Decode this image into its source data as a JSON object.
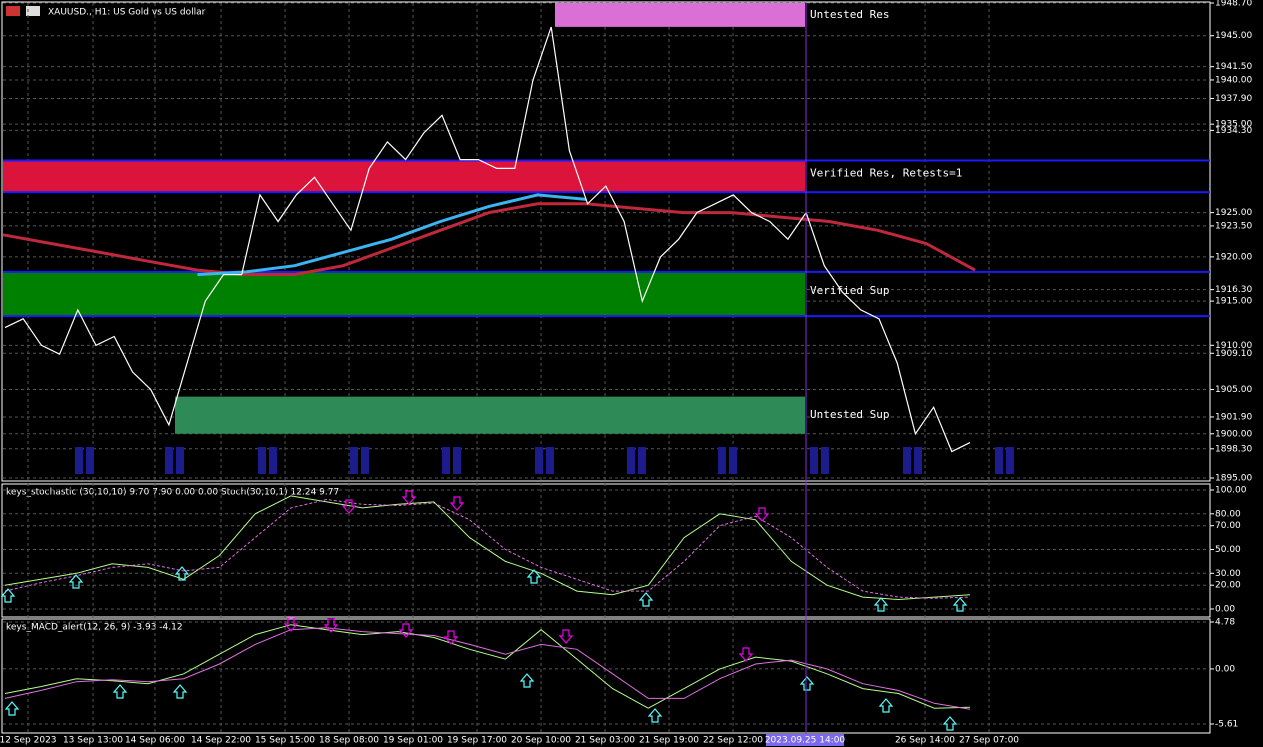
{
  "header": {
    "title": "XAUUSD., H1:  US Gold vs US dollar"
  },
  "price_axis": {
    "ticks": [
      {
        "value": 1948.7,
        "label": "1948.70"
      },
      {
        "value": 1945,
        "label": "1945.00"
      },
      {
        "value": 1941.5,
        "label": "1941.50"
      },
      {
        "value": 1940,
        "label": "1940.00"
      },
      {
        "value": 1937.9,
        "label": "1937.90"
      },
      {
        "value": 1935,
        "label": "1935.00"
      },
      {
        "value": 1934.3,
        "label": "1934.30"
      },
      {
        "value": 1925,
        "label": "1925.00"
      },
      {
        "value": 1923.5,
        "label": "1923.50"
      },
      {
        "value": 1920,
        "label": "1920.00"
      },
      {
        "value": 1916.3,
        "label": "1916.30"
      },
      {
        "value": 1915,
        "label": "1915.00"
      },
      {
        "value": 1910,
        "label": "1910.00"
      },
      {
        "value": 1909.1,
        "label": "1909.10"
      },
      {
        "value": 1905,
        "label": "1905.00"
      },
      {
        "value": 1901.9,
        "label": "1901.90"
      },
      {
        "value": 1900,
        "label": "1900.00"
      },
      {
        "value": 1898.3,
        "label": "1898.30"
      },
      {
        "value": 1895,
        "label": "1895.00"
      }
    ],
    "lim": [
      1895,
      1948.7
    ]
  },
  "zones": [
    {
      "label": "Untested Res",
      "top": 1948.7,
      "bottom": 1946,
      "color": "#da70d6",
      "start": 555
    },
    {
      "label": "Verified Res, Retests=1",
      "top": 1930.9,
      "bottom": 1927.3,
      "color": "#dc143c",
      "start": 3
    },
    {
      "label": "Verified Sup",
      "top": 1918.3,
      "bottom": 1913.3,
      "color": "#008000",
      "start": 3
    },
    {
      "label": "Untested Sup",
      "top": 1904.2,
      "bottom": 1900,
      "color": "#2e8b57",
      "start": 175
    }
  ],
  "price": {
    "closes": [
      1912,
      1913,
      1910,
      1909,
      1914,
      1910,
      1911,
      1907,
      1905,
      1901,
      1908,
      1915,
      1918,
      1918,
      1927,
      1924,
      1927,
      1929,
      1926,
      1923,
      1930,
      1933,
      1931,
      1934,
      1936,
      1931,
      1931,
      1930,
      1930,
      1940,
      1946,
      1932,
      1926,
      1928,
      1924,
      1915,
      1920,
      1922,
      1925,
      1926,
      1927,
      1925,
      1924,
      1922,
      1925,
      1919,
      1916,
      1914,
      1913,
      1908,
      1900,
      1903,
      1898,
      1899
    ],
    "ma_red": [
      1922.5,
      1921.5,
      1920.5,
      1919.5,
      1918.5,
      1918,
      1918,
      1919,
      1921,
      1923,
      1925,
      1926,
      1926,
      1925.5,
      1925,
      1925,
      1924.5,
      1924,
      1923,
      1921.5,
      1918.5
    ],
    "ma_blue": [
      null,
      null,
      null,
      null,
      1918,
      1918.3,
      1919,
      1920.5,
      1922,
      1924,
      1925.7,
      1927,
      1926.5,
      null,
      null,
      null,
      null,
      null,
      null,
      null,
      null
    ]
  },
  "stochastic": {
    "label": "keys_stochastic (30,10,10) 9.70 7.90 0.00 0.00 Stoch(30,10,1) 12.24 9.77",
    "ticks": [
      {
        "value": 100,
        "label": "100.00"
      },
      {
        "value": 80,
        "label": "80.00"
      },
      {
        "value": 70,
        "label": "70.00"
      },
      {
        "value": 50,
        "label": "50.00"
      },
      {
        "value": 30,
        "label": "30.00"
      },
      {
        "value": 20,
        "label": "20.00"
      },
      {
        "value": 0,
        "label": "0.00"
      }
    ],
    "lim": [
      0,
      100
    ],
    "main": [
      20,
      25,
      30,
      38,
      35,
      25,
      45,
      80,
      95,
      90,
      85,
      88,
      90,
      60,
      40,
      30,
      15,
      12,
      20,
      60,
      80,
      75,
      40,
      20,
      10,
      8,
      10,
      12
    ],
    "signal": [
      15,
      22,
      28,
      35,
      38,
      32,
      35,
      60,
      85,
      92,
      88,
      87,
      89,
      75,
      50,
      35,
      25,
      15,
      15,
      40,
      70,
      78,
      60,
      35,
      15,
      10,
      9,
      10
    ]
  },
  "macd": {
    "label": "keys_MACD_alert(12, 26, 9) -3.93 -4.12",
    "ticks": [
      4.78,
      {
        "value": 0,
        "label": "0.00"
      },
      -5.61
    ],
    "lim": [
      -5.61,
      4.78
    ],
    "main": [
      -2.5,
      -1.8,
      -1,
      -1.2,
      -1.5,
      -0.5,
      1.5,
      3.5,
      4.5,
      4,
      3.5,
      3.8,
      3.2,
      2,
      1,
      4,
      1,
      -2,
      -4,
      -2,
      0,
      1.2,
      0.8,
      -0.5,
      -2,
      -2.5,
      -4,
      -3.9
    ],
    "signal": [
      -3,
      -2.2,
      -1.3,
      -1.1,
      -1.3,
      -1,
      0.5,
      2.5,
      4,
      4.2,
      3.8,
      3.6,
      3.4,
      2.5,
      1.5,
      2.5,
      2,
      -0.5,
      -3,
      -3,
      -1,
      0.5,
      0.9,
      0,
      -1.5,
      -2.2,
      -3.5,
      -4.1
    ]
  },
  "time_axis": {
    "labels": [
      "12 Sep 2023",
      "13 Sep 13:00",
      "14 Sep 06:00",
      "14 Sep 22:00",
      "15 Sep 15:00",
      "18 Sep 08:00",
      "19 Sep 01:00",
      "19 Sep 17:00",
      "20 Sep 10:00",
      "21 Sep 03:00",
      "21 Sep 19:00",
      "22 Sep 12:00",
      "26 Sep 14:00",
      "27 Sep 07:00"
    ],
    "cursor": "2023.09.25 14:00"
  }
}
